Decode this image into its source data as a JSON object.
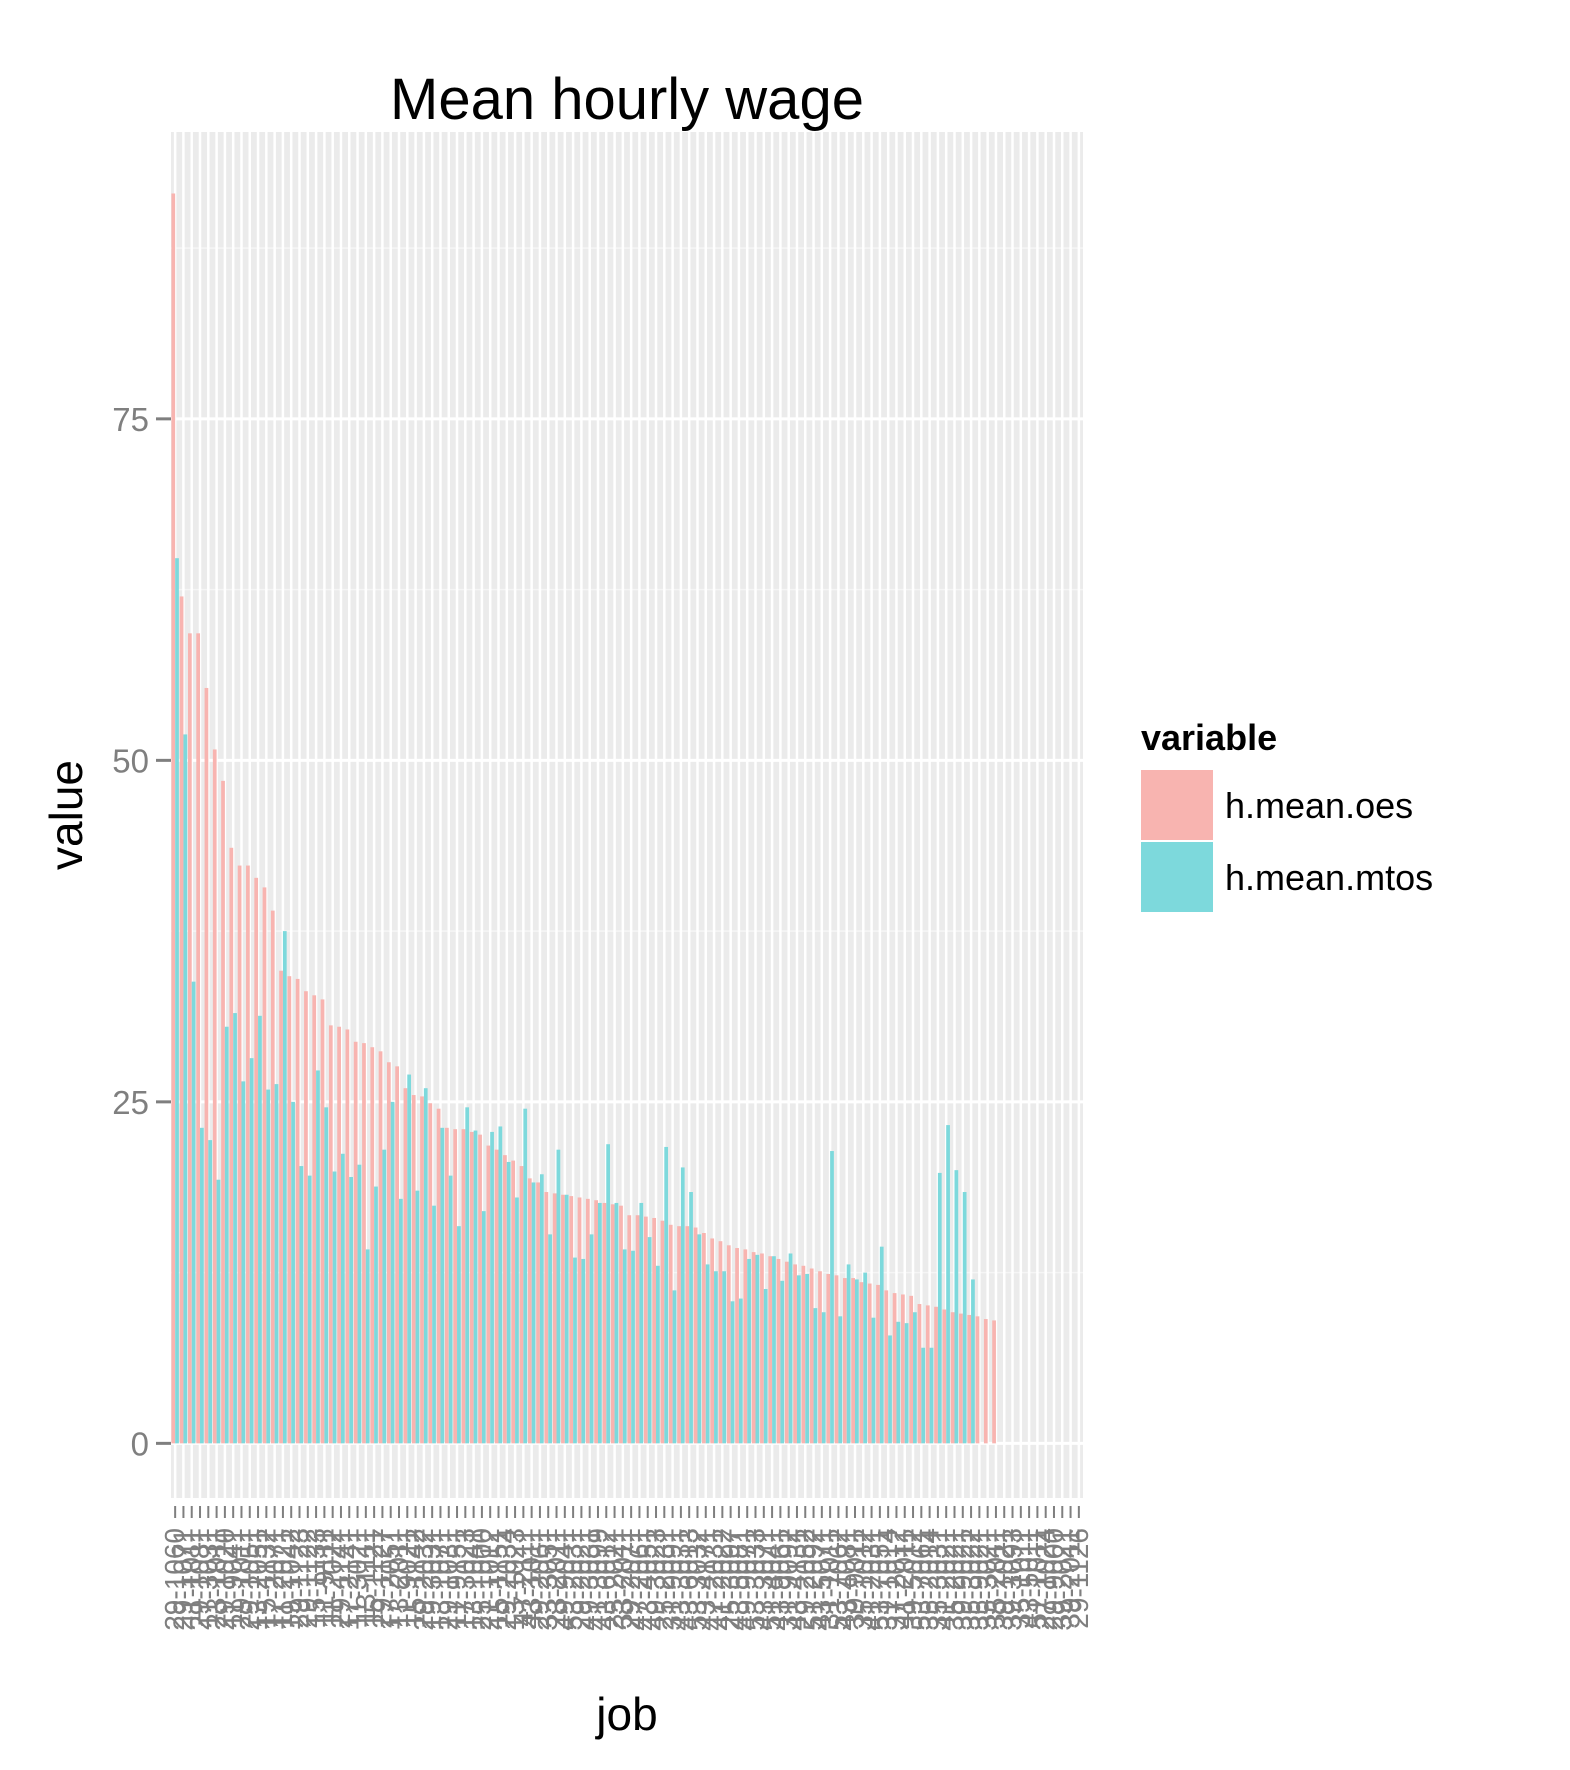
{
  "chart_data": {
    "type": "bar",
    "title": "Mean hourly wage",
    "xlabel": "job",
    "ylabel": "value",
    "ylim": [
      -4,
      96
    ],
    "yticks": [
      0,
      25,
      50,
      75
    ],
    "grid": true,
    "legend": {
      "title": "variable",
      "placement": "right"
    },
    "categories": [
      "29-1060",
      "29-1071",
      "11-1011",
      "29-1081",
      "11-3031",
      "23-1011",
      "29-1020",
      "11-9041",
      "29-1011",
      "29-1051",
      "13-2051",
      "15-1132",
      "17-2071",
      "11-2021",
      "19-1042",
      "29-1123",
      "29-1122",
      "15-1133",
      "11-9111",
      "11-2022",
      "29-1141",
      "17-2141",
      "11-3021",
      "13-1111",
      "15-1121",
      "29-1127",
      "17-2051",
      "13-2011",
      "11-9021",
      "15-1142",
      "29-2032",
      "19-3031",
      "13-1071",
      "29-1031",
      "11-9151",
      "17-3023",
      "13-1041",
      "25-1000",
      "21-1012",
      "15-1151",
      "29-2034",
      "13-1023",
      "47-2111",
      "43-1011",
      "29-2061",
      "33-3051",
      "23-2011",
      "49-9041",
      "53-2031",
      "29-2021",
      "49-3031",
      "41-3099",
      "43-6012",
      "25-2021",
      "33-2011",
      "29-2071",
      "47-2061",
      "43-4051",
      "49-3023",
      "25-2031",
      "31-9091",
      "43-3031",
      "43-6013",
      "53-3032",
      "43-4171",
      "47-2031",
      "41-2022",
      "25-3097",
      "43-5081",
      "49-9071",
      "53-3033",
      "43-3071",
      "51-4041",
      "43-9061",
      "31-9092",
      "43-4131",
      "29-2052",
      "51-2092",
      "43-5071",
      "31-1011",
      "53-7062",
      "43-4081",
      "39-9011",
      "35-1012",
      "41-2031",
      "53-7051",
      "31-1014",
      "37-2012",
      "41-2011",
      "39-5012",
      "53-7061",
      "35-2014",
      "35-3031",
      "41-2021",
      "35-2021",
      "39-9021",
      "35-3022",
      "35-9021",
      "35-3021",
      "35-2011",
      "39-1021",
      "39-3093",
      "35-1011",
      "43-5011",
      "51-1011",
      "27-1024",
      "29-9000",
      "39-2021",
      "39-2011",
      "29-1126"
    ],
    "series": [
      {
        "name": "h.mean.oes",
        "color": "#F8B4B0",
        "values": [
          91.5,
          62.0,
          59.3,
          59.3,
          55.3,
          50.8,
          48.5,
          43.6,
          42.3,
          42.3,
          41.4,
          40.7,
          39.0,
          34.6,
          34.2,
          34.0,
          33.1,
          32.8,
          32.5,
          30.6,
          30.5,
          30.3,
          29.4,
          29.3,
          29.0,
          28.7,
          27.9,
          27.6,
          26.0,
          25.5,
          25.4,
          24.9,
          24.5,
          23.1,
          23.0,
          23.0,
          22.8,
          22.6,
          21.8,
          21.5,
          21.1,
          20.7,
          20.3,
          19.4,
          19.1,
          18.4,
          18.3,
          18.2,
          18.1,
          18.0,
          17.9,
          17.8,
          17.6,
          17.5,
          17.4,
          16.7,
          16.7,
          16.6,
          16.5,
          16.3,
          16.0,
          15.9,
          15.9,
          15.8,
          15.4,
          15.0,
          14.8,
          14.5,
          14.3,
          14.2,
          14.0,
          13.9,
          13.7,
          13.5,
          13.3,
          13.1,
          13.0,
          12.8,
          12.6,
          12.4,
          12.3,
          12.1,
          12.1,
          11.8,
          11.7,
          11.6,
          11.2,
          11.0,
          10.9,
          10.8,
          10.2,
          10.1,
          10.0,
          9.8,
          9.6,
          9.5,
          9.4,
          9.3,
          9.1,
          9.0,
          0,
          0,
          0,
          0,
          0,
          0,
          0,
          0,
          0,
          0
        ],
        "note_missing": "last 10 categories have no h.mean.oes value"
      },
      {
        "name": "h.mean.mtos",
        "color": "#7DD9DC",
        "values": [
          64.8,
          51.9,
          33.8,
          23.1,
          22.2,
          19.3,
          30.5,
          31.5,
          26.5,
          28.2,
          31.3,
          25.9,
          26.3,
          37.5,
          25.0,
          20.3,
          19.6,
          27.3,
          24.6,
          19.9,
          21.2,
          19.5,
          20.4,
          14.2,
          18.8,
          21.5,
          25.0,
          17.9,
          27.0,
          18.5,
          26.0,
          17.4,
          23.1,
          19.6,
          15.9,
          24.6,
          22.9,
          17.0,
          22.8,
          23.2,
          20.6,
          18.0,
          24.5,
          19.1,
          19.7,
          15.3,
          21.5,
          18.2,
          13.6,
          13.5,
          15.3,
          17.6,
          21.9,
          17.6,
          14.2,
          14.1,
          17.6,
          15.1,
          13.0,
          21.7,
          11.2,
          20.2,
          18.4,
          15.3,
          13.1,
          12.6,
          12.6,
          10.4,
          10.6,
          13.5,
          13.8,
          11.3,
          13.7,
          11.9,
          13.9,
          12.3,
          12.4,
          9.9,
          9.6,
          21.4,
          9.3,
          13.1,
          12.0,
          12.5,
          9.2,
          14.4,
          7.9,
          8.9,
          8.8,
          9.6,
          7.0,
          7.0,
          19.8,
          23.3,
          20.0,
          18.4,
          12.0,
          0,
          0,
          0,
          0,
          0,
          0,
          0,
          0,
          0,
          0,
          0,
          0,
          0
        ],
        "note_missing": "first categories with mtos only are appended at the right"
      }
    ]
  }
}
